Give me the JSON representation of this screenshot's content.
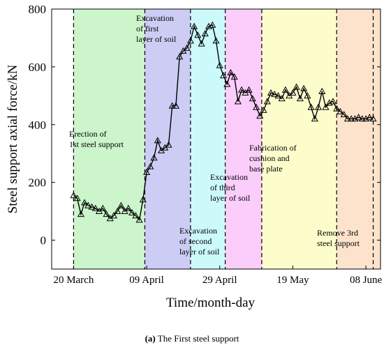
{
  "chart_data": {
    "type": "line",
    "title": "",
    "xlabel": "Time/month-day",
    "ylabel": "Steel support axial force/kN",
    "ylim": [
      -100,
      800
    ],
    "y_ticks": [
      0,
      200,
      400,
      600,
      800
    ],
    "x_ticks": [
      {
        "day": 0,
        "label": "20 March"
      },
      {
        "day": 20,
        "label": "09 April"
      },
      {
        "day": 40,
        "label": "29 April"
      },
      {
        "day": 60,
        "label": "19 May"
      },
      {
        "day": 80,
        "label": "08 June"
      }
    ],
    "xlim": [
      -6,
      84
    ],
    "marker": "triangle-open",
    "phases": [
      {
        "start": -6,
        "end": 0,
        "color": "#ffffff",
        "label": ""
      },
      {
        "start": 0,
        "end": 19.5,
        "color": "#ccf5cc",
        "label": "Erection of\n1st steel support"
      },
      {
        "start": 19.5,
        "end": 32,
        "color": "#ccccf5",
        "label": "Excavation\nof first\nlayer of soil"
      },
      {
        "start": 32,
        "end": 41.5,
        "color": "#ccfafa",
        "label": "Excavation\nof second\nlayer of soil"
      },
      {
        "start": 41.5,
        "end": 51.5,
        "color": "#facdfa",
        "label": "Excavation\nof third\nlayer of soil"
      },
      {
        "start": 51.5,
        "end": 72,
        "color": "#fdfdcc",
        "label": "Fabrication of\ncushion and\nbase plate"
      },
      {
        "start": 72,
        "end": 84,
        "color": "#fde3cc",
        "label": "Remove 3rd\nsteel support"
      }
    ],
    "phase_boundaries": [
      0,
      19.5,
      32,
      41.5,
      51.5,
      72,
      82
    ],
    "series": [
      {
        "x": [
          0,
          1,
          2,
          3,
          4,
          5,
          6,
          7,
          8,
          9,
          10,
          11,
          12,
          13,
          14,
          15,
          16,
          17,
          18,
          19,
          20,
          21,
          22,
          23,
          24,
          25,
          26,
          27,
          28,
          29,
          30,
          31,
          32,
          33,
          34,
          35,
          36,
          37,
          38,
          39,
          40,
          41,
          42,
          43,
          44,
          45,
          46,
          47,
          48,
          49,
          50,
          51,
          52,
          53,
          54,
          55,
          56,
          57,
          58,
          59,
          60,
          61,
          62,
          63,
          64,
          65,
          66,
          67,
          68,
          69,
          70,
          71,
          72,
          73,
          74,
          75,
          76,
          77,
          78,
          79,
          80,
          81,
          82
        ],
        "y": [
          155,
          145,
          90,
          130,
          120,
          115,
          110,
          100,
          110,
          90,
          75,
          85,
          100,
          120,
          100,
          110,
          95,
          85,
          70,
          140,
          235,
          255,
          285,
          345,
          310,
          320,
          330,
          465,
          465,
          635,
          655,
          665,
          690,
          740,
          710,
          680,
          715,
          740,
          745,
          690,
          605,
          570,
          540,
          580,
          565,
          480,
          520,
          510,
          520,
          490,
          460,
          430,
          450,
          480,
          510,
          505,
          500,
          490,
          520,
          500,
          510,
          530,
          490,
          525,
          500,
          460,
          420,
          460,
          515,
          460,
          475,
          480,
          455,
          445,
          435,
          420,
          420,
          420,
          425,
          420,
          420,
          425,
          420
        ]
      }
    ]
  },
  "caption": {
    "bold": "(a)",
    "text": " The First steel support"
  }
}
